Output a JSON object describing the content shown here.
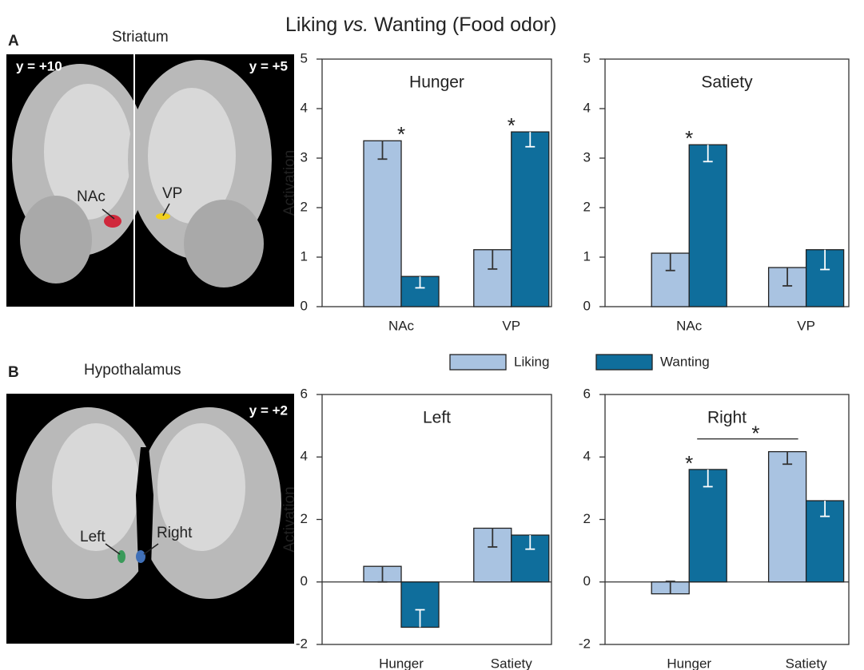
{
  "figure": {
    "title_parts": [
      "Liking ",
      "vs.",
      " Wanting (Food odor)"
    ],
    "panel_a": {
      "letter": "A",
      "title": "Striatum",
      "left_slice": "y = +10",
      "right_slice": "y = +5",
      "label_1": "NAc",
      "label_2": "VP"
    },
    "panel_b": {
      "letter": "B",
      "title": "Hypothalamus",
      "slice": "y = +2",
      "label_1": "Left",
      "label_2": "Right"
    }
  },
  "chart_data": [
    {
      "type": "bar",
      "title": "Hunger",
      "ylabel": "Activation",
      "categories": [
        "NAc",
        "VP"
      ],
      "series": [
        {
          "name": "Liking",
          "color": "#a9c3e1",
          "error_color": "#333333",
          "values": [
            3.35,
            1.15
          ],
          "errors": [
            0.37,
            0.39
          ]
        },
        {
          "name": "Wanting",
          "color": "#0f6e9c",
          "error_color": "#ffffff",
          "values": [
            0.61,
            3.53
          ],
          "errors": [
            0.23,
            0.3
          ]
        }
      ],
      "ylim": [
        0,
        5
      ],
      "yticks": [
        0,
        1,
        2,
        3,
        4,
        5
      ],
      "annotations": [
        {
          "text": "*",
          "category": 0
        },
        {
          "text": "*",
          "category": 1
        }
      ]
    },
    {
      "type": "bar",
      "title": "Satiety",
      "categories": [
        "NAc",
        "VP"
      ],
      "series": [
        {
          "color": "#a9c3e1",
          "error_color": "#333333",
          "values": [
            1.08,
            0.79
          ],
          "errors": [
            0.35,
            0.37
          ]
        },
        {
          "color": "#0f6e9c",
          "error_color": "#ffffff",
          "values": [
            3.27,
            1.15
          ],
          "errors": [
            0.34,
            0.4
          ]
        }
      ],
      "ylim": [
        0,
        5
      ],
      "yticks": [
        0,
        1,
        2,
        3,
        4,
        5
      ],
      "annotations": [
        {
          "text": "*",
          "category": 0
        }
      ]
    },
    {
      "type": "bar",
      "title": "Left",
      "ylabel": "Activation",
      "categories": [
        "Hunger",
        "Satiety"
      ],
      "series": [
        {
          "color": "#a9c3e1",
          "error_color": "#333333",
          "values": [
            0.5,
            1.72
          ],
          "errors": [
            0.5,
            0.6
          ]
        },
        {
          "color": "#0f6e9c",
          "error_color": "#ffffff",
          "values": [
            -1.45,
            1.5
          ],
          "errors": [
            0.56,
            0.45
          ]
        }
      ],
      "ylim": [
        -2,
        6
      ],
      "yticks": [
        -2,
        0,
        2,
        4,
        6
      ]
    },
    {
      "type": "bar",
      "title": "Right",
      "categories": [
        "Hunger",
        "Satiety"
      ],
      "series": [
        {
          "color": "#a9c3e1",
          "error_color": "#333333",
          "values": [
            -0.38,
            4.17
          ],
          "errors": [
            0.4,
            0.4
          ]
        },
        {
          "color": "#0f6e9c",
          "error_color": "#ffffff",
          "values": [
            3.6,
            2.6
          ],
          "errors": [
            0.55,
            0.5
          ]
        }
      ],
      "ylim": [
        -2,
        6
      ],
      "yticks": [
        -2,
        0,
        2,
        4,
        6
      ],
      "annotations": [
        {
          "text": "*",
          "category": 0
        },
        {
          "text": "*",
          "span": [
            0,
            1
          ]
        }
      ]
    }
  ]
}
